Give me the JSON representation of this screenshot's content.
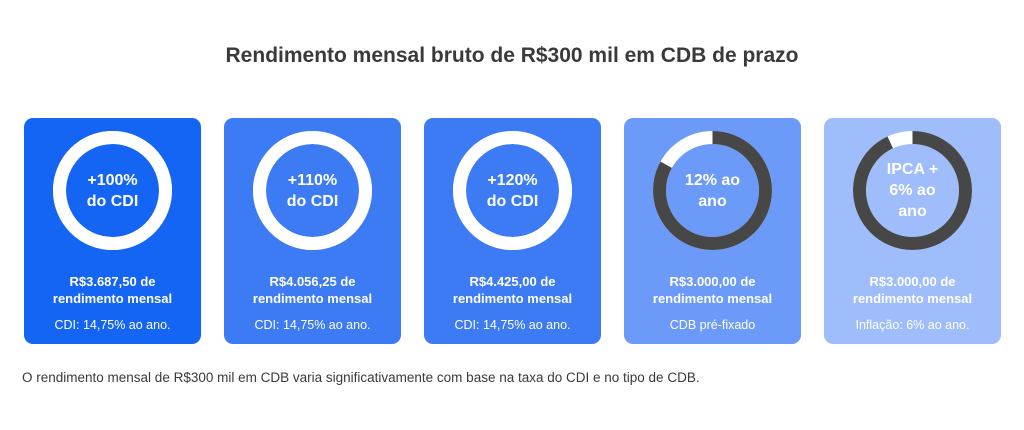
{
  "title": "Rendimento mensal bruto de R$300 mil em CDB de prazo",
  "caption": "O rendimento mensal de R$300 mil em CDB varia significativamente com base na taxa do CDI e no tipo de CDB.",
  "cards": [
    {
      "label": "+100%\ndo CDI",
      "amount_line1": "R$3.687,50 de",
      "amount_line2": "rendimento mensal",
      "rate": "CDI: 14,75% ao ano.",
      "bg_color": "#1565F4",
      "ring_fraction": 1.0,
      "ring_fill_color": "#ffffff",
      "ring_track_color": "#ffffff"
    },
    {
      "label": "+110%\ndo CDI",
      "amount_line1": "R$4.056,25 de",
      "amount_line2": "rendimento mensal",
      "rate": "CDI: 14,75% ao ano.",
      "bg_color": "#3D7BF5",
      "ring_fraction": 1.0,
      "ring_fill_color": "#ffffff",
      "ring_track_color": "#ffffff"
    },
    {
      "label": "+120%\ndo CDI",
      "amount_line1": "R$4.425,00 de",
      "amount_line2": "rendimento mensal",
      "rate": "CDI: 14,75% ao ano.",
      "bg_color": "#3D7BF5",
      "ring_fraction": 1.0,
      "ring_fill_color": "#ffffff",
      "ring_track_color": "#ffffff"
    },
    {
      "label": "12% ao\nano",
      "amount_line1": "R$3.000,00 de",
      "amount_line2": "rendimento mensal",
      "rate": "CDB pré-fixado",
      "bg_color": "#6C9AF8",
      "ring_fraction": 0.83,
      "ring_fill_color": "#474747",
      "ring_track_color": "#ffffff"
    },
    {
      "label": "IPCA +\n6% ao\nano",
      "amount_line1": "R$3.000,00 de",
      "amount_line2": "rendimento mensal",
      "rate": "Inflação: 6% ao ano.",
      "bg_color": "#9FBCFB",
      "ring_fraction": 0.93,
      "ring_fill_color": "#474747",
      "ring_track_color": "#ffffff"
    }
  ]
}
